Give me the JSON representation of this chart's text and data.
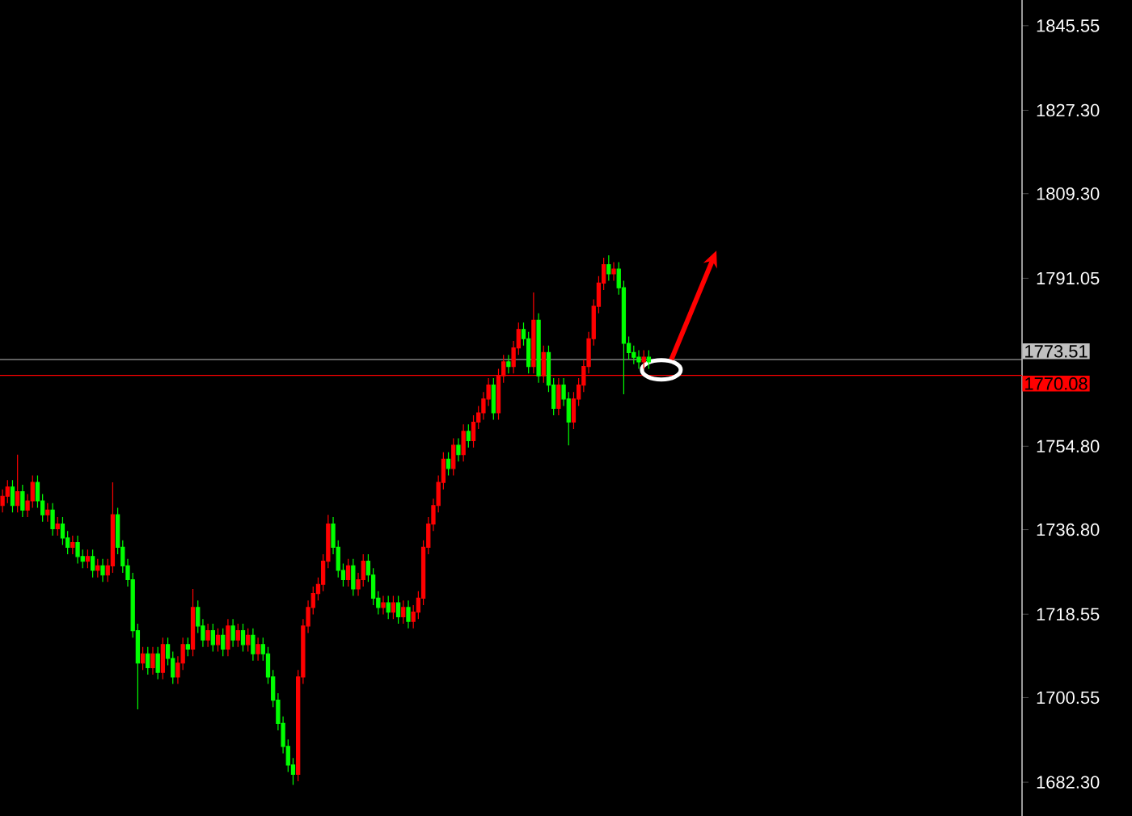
{
  "chart_data": {
    "type": "candlestick",
    "categories": [
      null,
      null,
      null,
      null,
      null,
      null,
      null,
      null,
      null,
      null,
      null,
      null,
      null,
      null,
      null,
      null,
      null,
      null,
      null,
      null,
      null,
      null,
      null,
      null,
      null,
      null,
      null,
      null,
      null,
      null,
      null,
      null,
      null,
      null,
      null,
      null,
      null,
      null,
      null,
      null,
      null,
      null,
      null,
      null,
      null,
      null,
      null,
      null,
      null,
      null,
      null,
      null,
      null,
      null,
      null,
      null,
      null,
      null,
      null,
      null,
      null,
      null,
      null,
      null,
      null,
      null,
      null,
      null,
      null,
      null,
      null,
      null,
      null,
      null,
      null,
      null,
      null,
      null,
      null,
      null,
      null,
      null,
      null,
      null,
      null,
      null,
      null,
      null,
      null,
      null,
      null,
      null,
      null,
      null,
      null,
      null,
      null,
      null,
      null,
      null,
      null,
      null,
      null,
      null,
      null,
      null,
      null,
      null,
      null,
      null,
      null,
      null,
      null,
      null,
      null,
      null,
      null,
      null,
      null,
      null,
      null,
      null,
      null,
      null,
      null,
      null,
      null,
      null,
      null,
      null,
      null,
      null,
      null,
      null,
      null,
      null,
      null,
      null,
      null,
      null,
      null,
      null,
      null,
      null,
      null,
      null,
      null,
      null,
      null,
      null,
      null,
      null,
      null,
      null,
      null,
      null,
      null,
      null,
      null,
      null,
      null,
      null,
      null,
      null,
      null,
      null,
      null,
      null,
      null,
      null,
      null,
      null,
      null,
      null,
      null,
      null,
      null,
      null,
      null,
      null,
      null,
      null,
      null,
      null,
      null,
      null,
      null,
      null,
      null,
      null,
      null,
      null,
      null,
      null,
      null,
      null,
      null,
      null,
      null,
      null,
      null,
      null,
      null,
      null
    ],
    "ohlc": [
      [
        1742,
        1745.5,
        1740.5,
        1744
      ],
      [
        1744,
        1747.5,
        1742.5,
        1746
      ],
      [
        1746,
        1747.5,
        1740.5,
        1742
      ],
      [
        1742,
        1753,
        1740.5,
        1745
      ],
      [
        1745,
        1746.5,
        1739.5,
        1741
      ],
      [
        1741,
        1744.5,
        1739.5,
        1743
      ],
      [
        1743,
        1748.5,
        1741.5,
        1747
      ],
      [
        1747,
        1748.5,
        1741.5,
        1743
      ],
      [
        1743,
        1744.5,
        1738.5,
        1740
      ],
      [
        1740,
        1742.5,
        1738.5,
        1741
      ],
      [
        1741,
        1742.5,
        1735.5,
        1737
      ],
      [
        1737,
        1739.5,
        1735.5,
        1738
      ],
      [
        1738,
        1739.5,
        1733.5,
        1735
      ],
      [
        1735,
        1736.5,
        1731.5,
        1733
      ],
      [
        1733,
        1735.5,
        1731.5,
        1734
      ],
      [
        1734,
        1735.5,
        1729.5,
        1731
      ],
      [
        1731,
        1732.5,
        1728.5,
        1730
      ],
      [
        1730,
        1732.5,
        1728.5,
        1731
      ],
      [
        1731,
        1732.5,
        1726.5,
        1728
      ],
      [
        1728,
        1730.5,
        1726.5,
        1729
      ],
      [
        1729,
        1730.5,
        1725.5,
        1727
      ],
      [
        1727,
        1730.5,
        1725.5,
        1729
      ],
      [
        1729,
        1747,
        1727.5,
        1740
      ],
      [
        1740,
        1741.5,
        1731.5,
        1733
      ],
      [
        1733,
        1734.5,
        1727.5,
        1729
      ],
      [
        1729,
        1730.5,
        1724.5,
        1726
      ],
      [
        1726,
        1727.5,
        1713.5,
        1715
      ],
      [
        1715,
        1716.5,
        1698,
        1708
      ],
      [
        1708,
        1711.5,
        1706.5,
        1710
      ],
      [
        1710,
        1711.5,
        1705.5,
        1707
      ],
      [
        1707,
        1711.5,
        1705.5,
        1710
      ],
      [
        1710,
        1711.5,
        1704.5,
        1706
      ],
      [
        1706,
        1713.5,
        1704.5,
        1712
      ],
      [
        1712,
        1713.5,
        1707.5,
        1709
      ],
      [
        1709,
        1710.5,
        1703.5,
        1705
      ],
      [
        1705,
        1709.5,
        1703.5,
        1708
      ],
      [
        1708,
        1713.5,
        1706.5,
        1712
      ],
      [
        1712,
        1713.5,
        1709.5,
        1711
      ],
      [
        1711,
        1724,
        1709.5,
        1720
      ],
      [
        1720,
        1721.5,
        1714.5,
        1716
      ],
      [
        1716,
        1717.5,
        1711.5,
        1713
      ],
      [
        1713,
        1716.5,
        1711.5,
        1715
      ],
      [
        1715,
        1716.5,
        1710.5,
        1712
      ],
      [
        1712,
        1715.5,
        1710.5,
        1714
      ],
      [
        1714,
        1715.5,
        1709.5,
        1711
      ],
      [
        1711,
        1717.5,
        1709.5,
        1716
      ],
      [
        1716,
        1717.5,
        1711.5,
        1713
      ],
      [
        1713,
        1716.5,
        1711.5,
        1715
      ],
      [
        1715,
        1716.5,
        1710.5,
        1712
      ],
      [
        1712,
        1715.5,
        1710.5,
        1714
      ],
      [
        1714,
        1715.5,
        1708.5,
        1710
      ],
      [
        1710,
        1713.5,
        1708.5,
        1712
      ],
      [
        1712,
        1713.5,
        1708.5,
        1710
      ],
      [
        1710,
        1711.5,
        1703.5,
        1705
      ],
      [
        1705,
        1706.5,
        1698.5,
        1700
      ],
      [
        1700,
        1701.5,
        1693.5,
        1695
      ],
      [
        1695,
        1696.5,
        1688.5,
        1690
      ],
      [
        1690,
        1691.5,
        1684.5,
        1686
      ],
      [
        1686,
        1687.5,
        1681.7,
        1684
      ],
      [
        1684,
        1706.5,
        1682.5,
        1705
      ],
      [
        1705,
        1717.5,
        1703.5,
        1716
      ],
      [
        1716,
        1721.5,
        1714.5,
        1720
      ],
      [
        1720,
        1724.5,
        1718.5,
        1723
      ],
      [
        1723,
        1726.5,
        1721.5,
        1725
      ],
      [
        1725,
        1731.5,
        1723.5,
        1730
      ],
      [
        1730,
        1740,
        1728.5,
        1738
      ],
      [
        1738,
        1739.5,
        1731.5,
        1733
      ],
      [
        1733,
        1734.5,
        1726.5,
        1728
      ],
      [
        1728,
        1729.5,
        1724.5,
        1726
      ],
      [
        1726,
        1730.5,
        1724.5,
        1729
      ],
      [
        1729,
        1730.5,
        1722.5,
        1724
      ],
      [
        1724,
        1727.5,
        1722.5,
        1726
      ],
      [
        1726,
        1731.5,
        1724.5,
        1730
      ],
      [
        1730,
        1731.5,
        1725.5,
        1727
      ],
      [
        1727,
        1728.5,
        1720.5,
        1722
      ],
      [
        1722,
        1723.5,
        1718.5,
        1720
      ],
      [
        1720,
        1722.5,
        1718.5,
        1721
      ],
      [
        1721,
        1722.5,
        1717.5,
        1719
      ],
      [
        1719,
        1722.5,
        1717.5,
        1721
      ],
      [
        1721,
        1722.5,
        1716.5,
        1718
      ],
      [
        1718,
        1721.5,
        1716.5,
        1720
      ],
      [
        1720,
        1721.5,
        1715.5,
        1717
      ],
      [
        1717,
        1720.5,
        1715.5,
        1719
      ],
      [
        1719,
        1723.5,
        1717.5,
        1722
      ],
      [
        1722,
        1734.5,
        1720.5,
        1733
      ],
      [
        1733,
        1739.5,
        1731.5,
        1738
      ],
      [
        1738,
        1743.5,
        1736.5,
        1742
      ],
      [
        1742,
        1748.5,
        1740.5,
        1747
      ],
      [
        1747,
        1753.5,
        1745.5,
        1752
      ],
      [
        1752,
        1753.5,
        1748.5,
        1750
      ],
      [
        1750,
        1756.5,
        1748.5,
        1755
      ],
      [
        1755,
        1756.5,
        1751.5,
        1753
      ],
      [
        1753,
        1759.5,
        1751.5,
        1758
      ],
      [
        1758,
        1759.5,
        1754.5,
        1756
      ],
      [
        1756,
        1761.5,
        1754.5,
        1760
      ],
      [
        1760,
        1763.5,
        1758.5,
        1762
      ],
      [
        1762,
        1766.5,
        1760.5,
        1765
      ],
      [
        1765,
        1769.5,
        1763.5,
        1768
      ],
      [
        1768,
        1769.5,
        1760.5,
        1762
      ],
      [
        1762,
        1771.5,
        1760.5,
        1770
      ],
      [
        1770,
        1774.5,
        1768.5,
        1773
      ],
      [
        1773,
        1774.5,
        1770.5,
        1772
      ],
      [
        1772,
        1777.5,
        1770.5,
        1776
      ],
      [
        1776,
        1781.5,
        1774.5,
        1780
      ],
      [
        1780,
        1781.5,
        1776.5,
        1778
      ],
      [
        1778,
        1779.5,
        1770.5,
        1772
      ],
      [
        1772,
        1788,
        1770.5,
        1782
      ],
      [
        1782,
        1783.5,
        1768.5,
        1770
      ],
      [
        1770,
        1776.5,
        1768.5,
        1775
      ],
      [
        1775,
        1776.5,
        1766.5,
        1768
      ],
      [
        1768,
        1769.5,
        1761.5,
        1763
      ],
      [
        1763,
        1769.5,
        1761.5,
        1768
      ],
      [
        1768,
        1769.5,
        1763.5,
        1765
      ],
      [
        1765,
        1766.5,
        1755,
        1760
      ],
      [
        1760,
        1766.5,
        1758.5,
        1765
      ],
      [
        1765,
        1769.5,
        1763.5,
        1768
      ],
      [
        1768,
        1773.5,
        1766.5,
        1772
      ],
      [
        1772,
        1779.5,
        1770.5,
        1778
      ],
      [
        1778,
        1786.5,
        1776.5,
        1785
      ],
      [
        1785,
        1791.5,
        1783.5,
        1790
      ],
      [
        1790,
        1795.5,
        1788.5,
        1794
      ],
      [
        1794,
        1796,
        1790.5,
        1792
      ],
      [
        1792,
        1794.5,
        1790.5,
        1793
      ],
      [
        1793,
        1794.5,
        1787.5,
        1789
      ],
      [
        1789,
        1790.5,
        1766,
        1777
      ],
      [
        1777,
        1778.5,
        1773.5,
        1775
      ],
      [
        1775,
        1776.5,
        1772.5,
        1774
      ],
      [
        1774,
        1775.5,
        1771.5,
        1773
      ],
      [
        1773,
        1775.5,
        1771.5,
        1774
      ],
      [
        1774,
        1775.5,
        1771.5,
        1773
      ],
      null,
      null,
      null,
      null,
      null,
      null,
      null,
      null,
      null,
      null,
      null,
      null,
      null,
      null,
      null,
      null,
      null,
      null,
      null,
      null,
      null,
      null,
      null,
      null,
      null,
      null,
      null,
      null,
      null,
      null,
      null,
      null,
      null,
      null,
      null,
      null,
      null,
      null,
      null,
      null,
      null,
      null,
      null,
      null,
      null,
      null,
      null,
      null,
      null,
      null,
      null,
      null,
      null,
      null,
      null,
      null,
      null,
      null,
      null,
      null,
      null,
      null,
      null,
      null,
      null,
      null,
      null,
      null,
      null,
      null,
      null,
      null,
      null,
      null
    ],
    "colors": [
      "#ff0000",
      "#ff0000",
      "#00ff00",
      "#ff0000",
      "#00ff00",
      "#ff0000",
      "#ff0000",
      "#00ff00",
      "#00ff00",
      "#ff0000",
      "#00ff00",
      "#ff0000",
      "#00ff00",
      "#00ff00",
      "#ff0000",
      "#00ff00",
      "#00ff00",
      "#ff0000",
      "#00ff00",
      "#ff0000",
      "#00ff00",
      "#ff0000",
      "#ff0000",
      "#00ff00",
      "#00ff00",
      "#00ff00",
      "#00ff00",
      "#00ff00",
      "#ff0000",
      "#00ff00",
      "#ff0000",
      "#00ff00",
      "#ff0000",
      "#00ff00",
      "#00ff00",
      "#ff0000",
      "#ff0000",
      "#00ff00",
      "#ff0000",
      "#00ff00",
      "#00ff00",
      "#ff0000",
      "#00ff00",
      "#ff0000",
      "#00ff00",
      "#ff0000",
      "#00ff00",
      "#ff0000",
      "#00ff00",
      "#ff0000",
      "#00ff00",
      "#ff0000",
      "#00ff00",
      "#00ff00",
      "#00ff00",
      "#00ff00",
      "#00ff00",
      "#00ff00",
      "#00ff00",
      "#ff0000",
      "#ff0000",
      "#ff0000",
      "#ff0000",
      "#ff0000",
      "#ff0000",
      "#ff0000",
      "#00ff00",
      "#00ff00",
      "#00ff00",
      "#ff0000",
      "#00ff00",
      "#ff0000",
      "#ff0000",
      "#00ff00",
      "#00ff00",
      "#00ff00",
      "#ff0000",
      "#00ff00",
      "#ff0000",
      "#00ff00",
      "#ff0000",
      "#00ff00",
      "#ff0000",
      "#ff0000",
      "#ff0000",
      "#ff0000",
      "#ff0000",
      "#ff0000",
      "#ff0000",
      "#00ff00",
      "#ff0000",
      "#00ff00",
      "#ff0000",
      "#00ff00",
      "#ff0000",
      "#ff0000",
      "#ff0000",
      "#ff0000",
      "#00ff00",
      "#ff0000",
      "#ff0000",
      "#00ff00",
      "#ff0000",
      "#ff0000",
      "#00ff00",
      "#00ff00",
      "#ff0000",
      "#00ff00",
      "#ff0000",
      "#00ff00",
      "#00ff00",
      "#ff0000",
      "#00ff00",
      "#00ff00",
      "#ff0000",
      "#ff0000",
      "#ff0000",
      "#ff0000",
      "#ff0000",
      "#ff0000",
      "#ff0000",
      "#00ff00",
      "#ff0000",
      "#00ff00",
      "#00ff00",
      "#00ff00",
      "#00ff00",
      "#00ff00",
      "#ff0000",
      "#00ff00",
      null,
      null,
      null,
      null,
      null,
      null,
      null,
      null,
      null,
      null,
      null,
      null,
      null,
      null,
      null,
      null,
      null,
      null,
      null,
      null,
      null,
      null,
      null,
      null,
      null,
      null,
      null,
      null,
      null,
      null,
      null,
      null,
      null,
      null,
      null,
      null,
      null,
      null,
      null,
      null,
      null,
      null,
      null,
      null,
      null,
      null,
      null,
      null,
      null,
      null,
      null,
      null,
      null,
      null,
      null,
      null,
      null,
      null,
      null,
      null,
      null,
      null,
      null,
      null,
      null,
      null,
      null,
      null,
      null,
      null,
      null,
      null,
      null,
      null
    ],
    "ylim": [
      1675.0,
      1851.1
    ],
    "yticks": [
      1845.55,
      {
        "value": 1827.3,
        "label": "1827.30"
      },
      {
        "value": 1809.3,
        "label": "1809.30"
      },
      1791.05,
      {
        "value": 1754.8,
        "label": "1754.80"
      },
      {
        "value": 1736.8,
        "label": "1736.80"
      },
      1718.55,
      1700.55,
      {
        "value": 1682.3,
        "label": "1682.30"
      }
    ],
    "ref_lines": [
      {
        "axis": "y",
        "value": 1773.51,
        "label": "1773.51",
        "color": "#c0c0c0"
      },
      {
        "axis": "y",
        "value": 1770.08,
        "label": "1770.08",
        "color": "#ff0000"
      }
    ],
    "tick_labels": "y"
  }
}
